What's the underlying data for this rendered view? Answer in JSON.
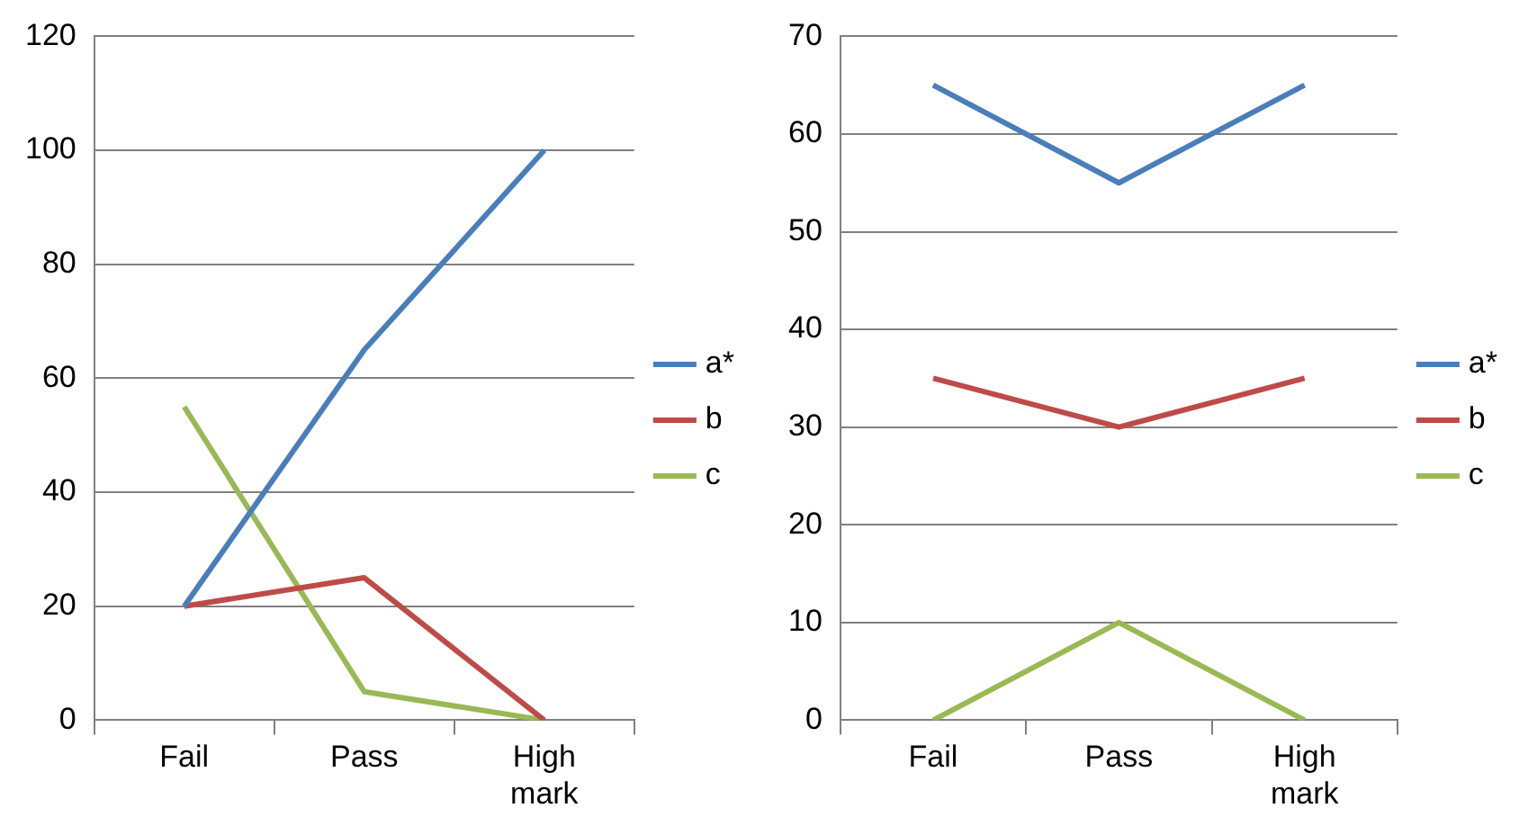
{
  "chart_data": [
    {
      "type": "line",
      "categories": [
        "Fail",
        "Pass",
        "High mark"
      ],
      "ylim": [
        0,
        120
      ],
      "yticks": [
        0,
        20,
        40,
        60,
        80,
        100,
        120
      ],
      "grid": "y",
      "legend": "right",
      "marker": "none",
      "series": [
        {
          "name": "a*",
          "color": "#4a7ebb",
          "values": [
            20,
            65,
            100
          ]
        },
        {
          "name": "b",
          "color": "#be4b48",
          "values": [
            20,
            25,
            0
          ]
        },
        {
          "name": "c",
          "color": "#98b954",
          "values": [
            55,
            5,
            0
          ]
        }
      ]
    },
    {
      "type": "line",
      "categories": [
        "Fail",
        "Pass",
        "High mark"
      ],
      "ylim": [
        0,
        70
      ],
      "yticks": [
        0,
        10,
        20,
        30,
        40,
        50,
        60,
        70
      ],
      "grid": "y",
      "legend": "right",
      "marker": "none",
      "series": [
        {
          "name": "a*",
          "color": "#4a7ebb",
          "values": [
            65,
            55,
            65
          ]
        },
        {
          "name": "b",
          "color": "#be4b48",
          "values": [
            35,
            30,
            35
          ]
        },
        {
          "name": "c",
          "color": "#98b954",
          "values": [
            0,
            10,
            0
          ]
        }
      ]
    }
  ]
}
